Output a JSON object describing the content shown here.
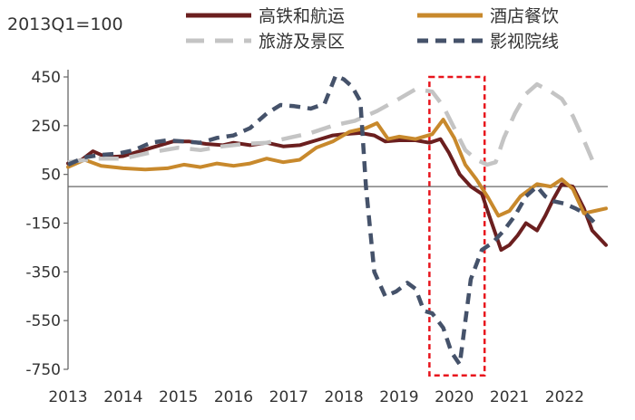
{
  "chart_data": {
    "type": "line",
    "subtitle": "2013Q1=100",
    "xlabel": "",
    "ylabel": "",
    "x_tick_labels": [
      "2013",
      "2014",
      "2015",
      "2016",
      "2017",
      "2018",
      "2019",
      "2020",
      "2021",
      "2022"
    ],
    "y_ticks": [
      450,
      250,
      50,
      -150,
      -350,
      -550,
      -750
    ],
    "ylim": [
      -750,
      480
    ],
    "xlim": [
      2013.0,
      2022.75
    ],
    "zero_line": 0,
    "grid": false,
    "legend_position": "top",
    "highlight": {
      "x_from": 2019.55,
      "x_to": 2020.55,
      "y_from": -775,
      "y_to": 450,
      "color": "#e8141c",
      "style": "dashed"
    },
    "series": [
      {
        "name": "高铁和航运",
        "color": "#6b1f1f",
        "dash": "solid",
        "points": [
          [
            2013.0,
            95
          ],
          [
            2013.25,
            110
          ],
          [
            2013.45,
            145
          ],
          [
            2013.7,
            120
          ],
          [
            2014.0,
            125
          ],
          [
            2014.3,
            145
          ],
          [
            2014.6,
            165
          ],
          [
            2014.9,
            185
          ],
          [
            2015.2,
            185
          ],
          [
            2015.5,
            175
          ],
          [
            2015.8,
            170
          ],
          [
            2016.0,
            180
          ],
          [
            2016.3,
            170
          ],
          [
            2016.6,
            180
          ],
          [
            2016.9,
            165
          ],
          [
            2017.2,
            170
          ],
          [
            2017.5,
            190
          ],
          [
            2017.8,
            210
          ],
          [
            2018.0,
            215
          ],
          [
            2018.3,
            220
          ],
          [
            2018.55,
            210
          ],
          [
            2018.75,
            185
          ],
          [
            2019.0,
            190
          ],
          [
            2019.3,
            190
          ],
          [
            2019.55,
            180
          ],
          [
            2019.75,
            195
          ],
          [
            2019.9,
            140
          ],
          [
            2020.1,
            50
          ],
          [
            2020.3,
            0
          ],
          [
            2020.5,
            -30
          ],
          [
            2020.65,
            -130
          ],
          [
            2020.85,
            -260
          ],
          [
            2021.0,
            -240
          ],
          [
            2021.15,
            -200
          ],
          [
            2021.3,
            -150
          ],
          [
            2021.5,
            -180
          ],
          [
            2021.65,
            -120
          ],
          [
            2021.8,
            -50
          ],
          [
            2021.95,
            10
          ],
          [
            2022.15,
            0
          ],
          [
            2022.35,
            -90
          ],
          [
            2022.5,
            -180
          ],
          [
            2022.75,
            -240
          ]
        ]
      },
      {
        "name": "酒店餐饮",
        "color": "#c8892c",
        "dash": "solid",
        "points": [
          [
            2013.0,
            80
          ],
          [
            2013.3,
            110
          ],
          [
            2013.6,
            85
          ],
          [
            2014.0,
            75
          ],
          [
            2014.4,
            70
          ],
          [
            2014.8,
            75
          ],
          [
            2015.1,
            90
          ],
          [
            2015.4,
            80
          ],
          [
            2015.7,
            95
          ],
          [
            2016.0,
            85
          ],
          [
            2016.3,
            95
          ],
          [
            2016.6,
            115
          ],
          [
            2016.9,
            100
          ],
          [
            2017.2,
            110
          ],
          [
            2017.5,
            160
          ],
          [
            2017.8,
            185
          ],
          [
            2018.1,
            225
          ],
          [
            2018.4,
            240
          ],
          [
            2018.6,
            260
          ],
          [
            2018.8,
            195
          ],
          [
            2019.0,
            205
          ],
          [
            2019.3,
            195
          ],
          [
            2019.6,
            215
          ],
          [
            2019.8,
            275
          ],
          [
            2020.0,
            200
          ],
          [
            2020.2,
            90
          ],
          [
            2020.4,
            30
          ],
          [
            2020.6,
            -40
          ],
          [
            2020.8,
            -120
          ],
          [
            2021.0,
            -100
          ],
          [
            2021.2,
            -40
          ],
          [
            2021.5,
            10
          ],
          [
            2021.75,
            0
          ],
          [
            2021.95,
            30
          ],
          [
            2022.15,
            -10
          ],
          [
            2022.35,
            -110
          ],
          [
            2022.55,
            -100
          ],
          [
            2022.75,
            -90
          ]
        ]
      },
      {
        "name": "旅游及景区",
        "color": "#c4c4c4",
        "dash": "long-dash",
        "points": [
          [
            2013.0,
            100
          ],
          [
            2013.5,
            115
          ],
          [
            2014.0,
            115
          ],
          [
            2014.5,
            140
          ],
          [
            2015.0,
            160
          ],
          [
            2015.4,
            150
          ],
          [
            2015.8,
            165
          ],
          [
            2016.2,
            175
          ],
          [
            2016.6,
            180
          ],
          [
            2017.0,
            200
          ],
          [
            2017.4,
            220
          ],
          [
            2017.8,
            250
          ],
          [
            2018.2,
            270
          ],
          [
            2018.6,
            310
          ],
          [
            2019.0,
            360
          ],
          [
            2019.3,
            400
          ],
          [
            2019.6,
            390
          ],
          [
            2019.8,
            330
          ],
          [
            2020.0,
            240
          ],
          [
            2020.2,
            150
          ],
          [
            2020.4,
            110
          ],
          [
            2020.6,
            90
          ],
          [
            2020.75,
            100
          ],
          [
            2020.9,
            200
          ],
          [
            2021.1,
            300
          ],
          [
            2021.3,
            380
          ],
          [
            2021.5,
            420
          ],
          [
            2021.75,
            390
          ],
          [
            2021.95,
            360
          ],
          [
            2022.15,
            290
          ],
          [
            2022.35,
            190
          ],
          [
            2022.5,
            110
          ]
        ]
      },
      {
        "name": "影视院线",
        "color": "#45526a",
        "dash": "dash",
        "points": [
          [
            2013.0,
            90
          ],
          [
            2013.3,
            120
          ],
          [
            2013.6,
            130
          ],
          [
            2013.9,
            135
          ],
          [
            2014.2,
            150
          ],
          [
            2014.5,
            180
          ],
          [
            2014.8,
            190
          ],
          [
            2015.1,
            185
          ],
          [
            2015.4,
            180
          ],
          [
            2015.7,
            200
          ],
          [
            2016.0,
            210
          ],
          [
            2016.3,
            240
          ],
          [
            2016.6,
            300
          ],
          [
            2016.85,
            335
          ],
          [
            2017.1,
            330
          ],
          [
            2017.4,
            320
          ],
          [
            2017.65,
            340
          ],
          [
            2017.85,
            455
          ],
          [
            2018.0,
            440
          ],
          [
            2018.15,
            410
          ],
          [
            2018.3,
            350
          ],
          [
            2018.4,
            0
          ],
          [
            2018.55,
            -350
          ],
          [
            2018.75,
            -450
          ],
          [
            2018.95,
            -430
          ],
          [
            2019.15,
            -395
          ],
          [
            2019.3,
            -420
          ],
          [
            2019.45,
            -510
          ],
          [
            2019.6,
            -520
          ],
          [
            2019.8,
            -580
          ],
          [
            2019.95,
            -680
          ],
          [
            2020.1,
            -730
          ],
          [
            2020.3,
            -380
          ],
          [
            2020.5,
            -260
          ],
          [
            2020.7,
            -230
          ],
          [
            2020.9,
            -180
          ],
          [
            2021.1,
            -120
          ],
          [
            2021.3,
            -40
          ],
          [
            2021.5,
            0
          ],
          [
            2021.65,
            -40
          ],
          [
            2021.8,
            -60
          ],
          [
            2022.0,
            -70
          ],
          [
            2022.2,
            -90
          ],
          [
            2022.4,
            -115
          ],
          [
            2022.55,
            -150
          ]
        ]
      }
    ]
  }
}
